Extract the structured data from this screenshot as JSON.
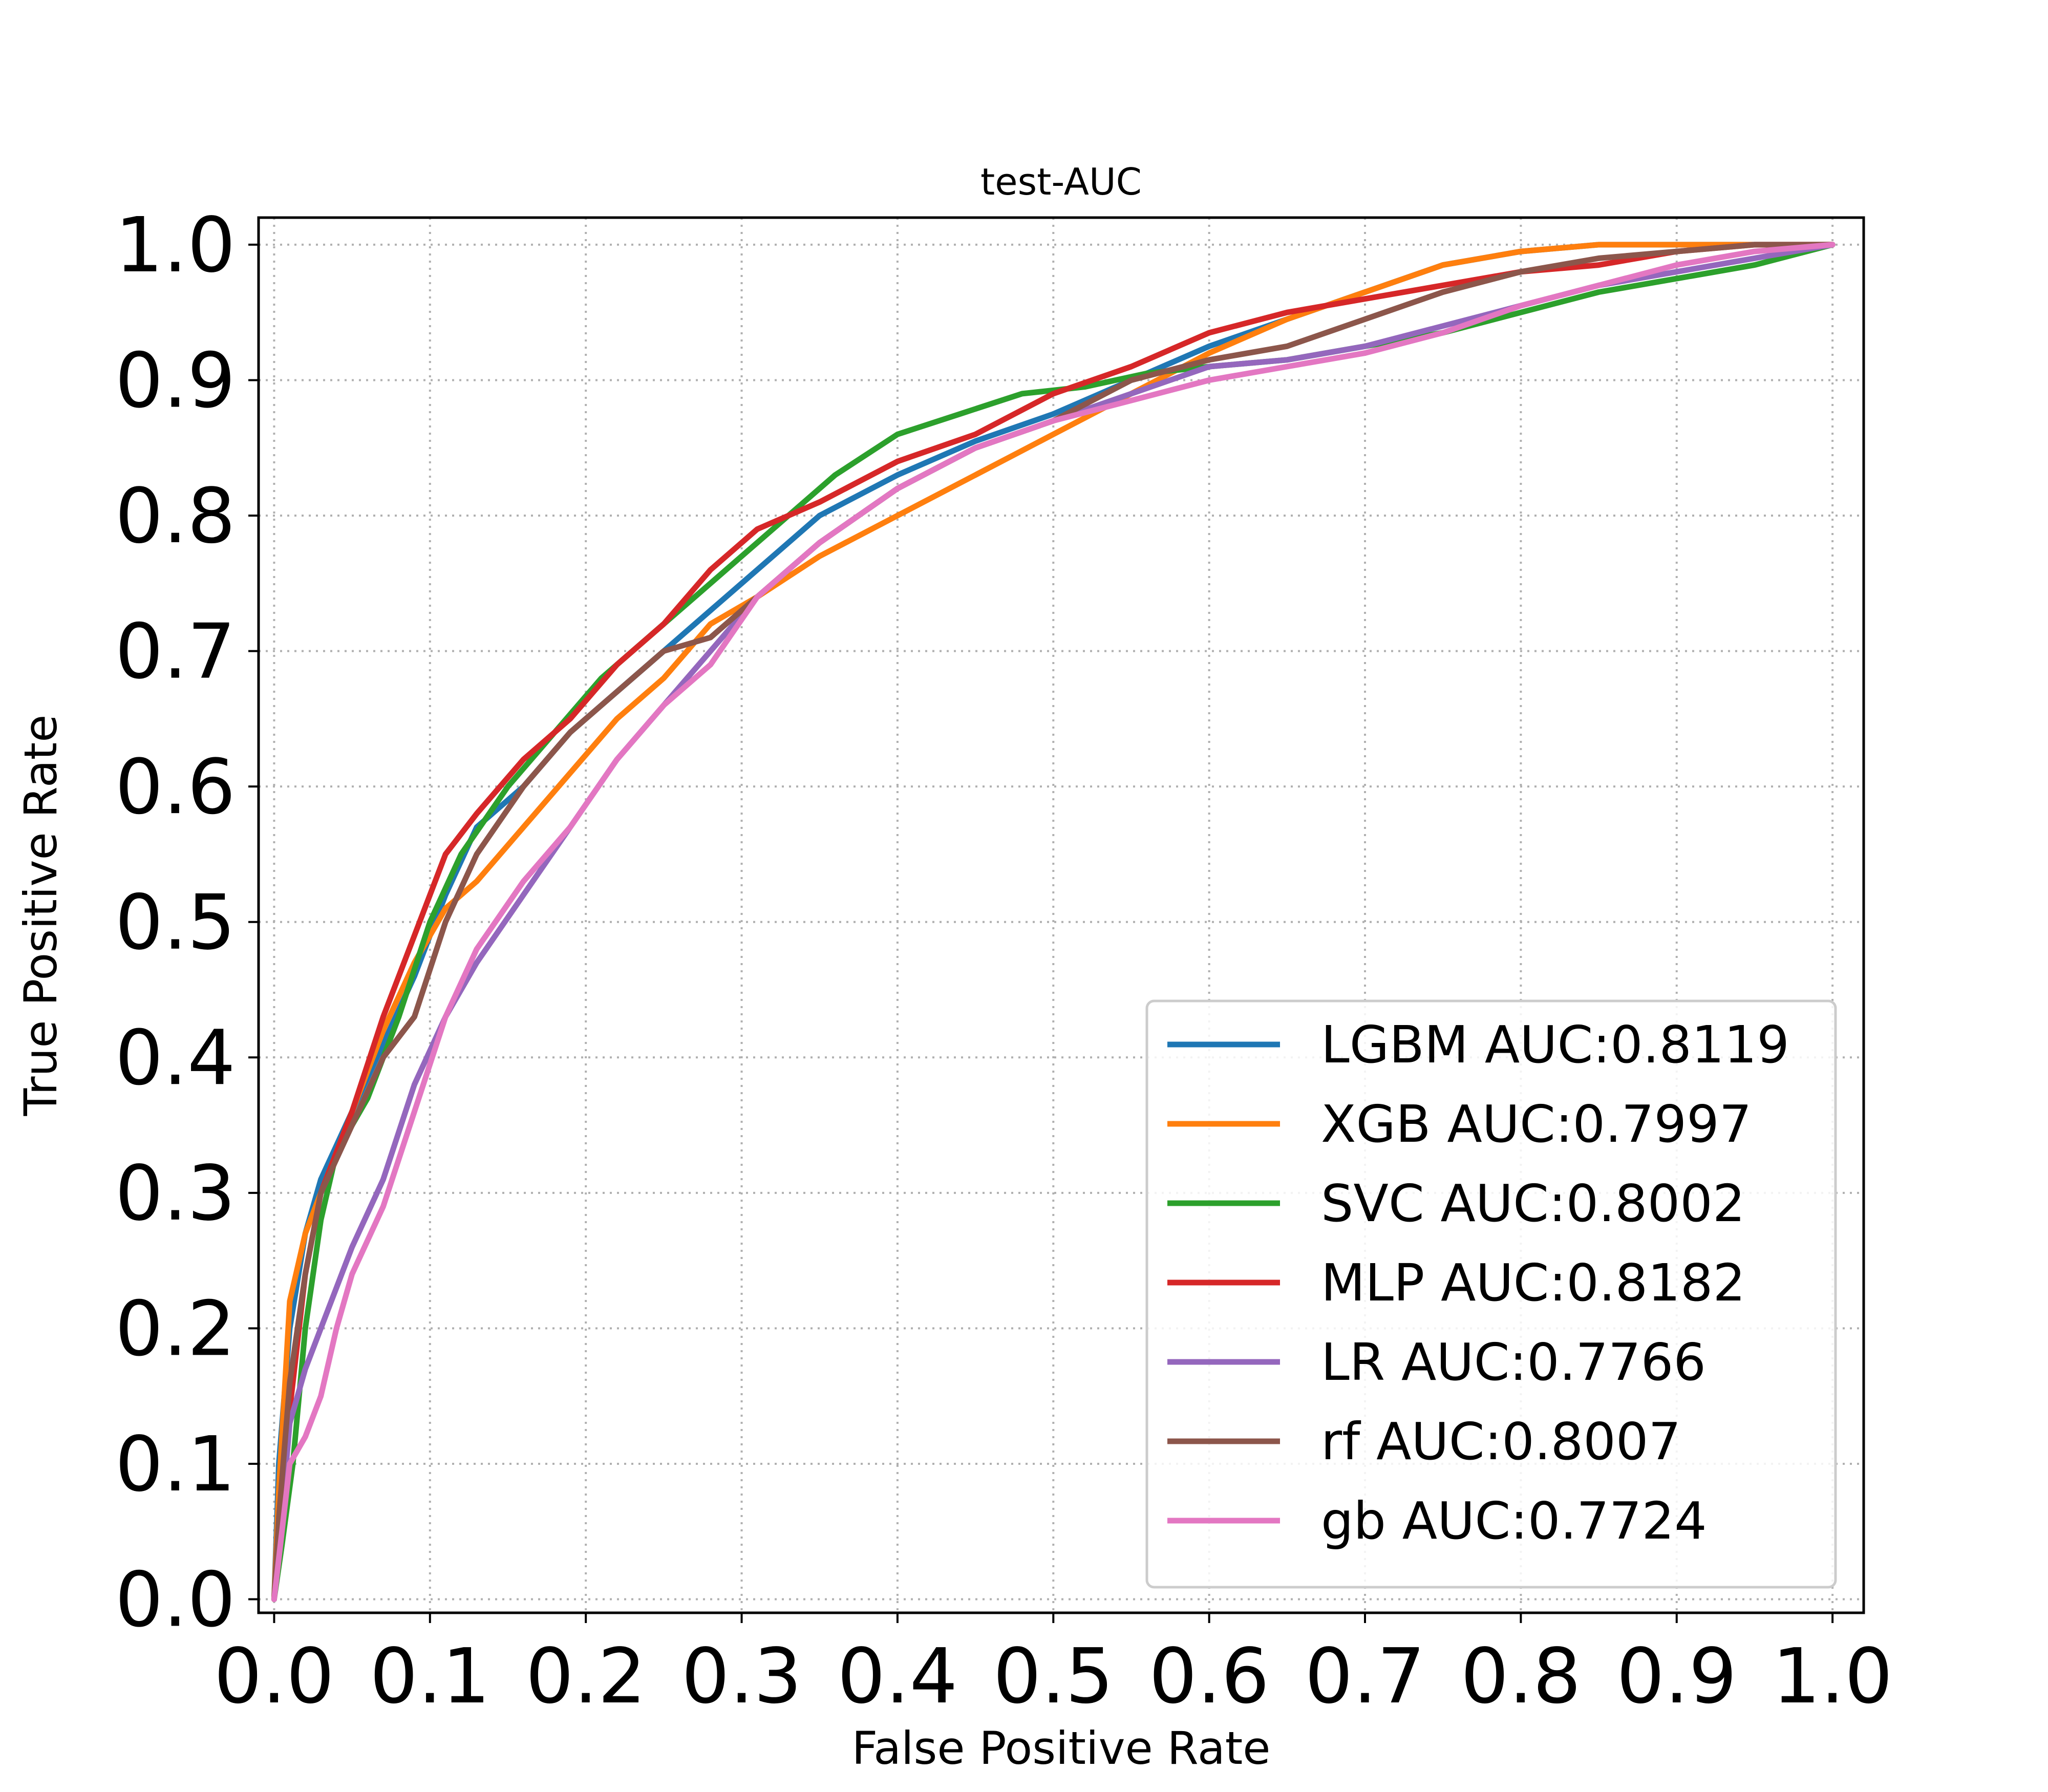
{
  "chart_data": {
    "type": "line",
    "title": "test-AUC",
    "xlabel": "False Positive Rate",
    "ylabel": "True Positive Rate",
    "xlim": [
      -0.01,
      1.02
    ],
    "ylim": [
      -0.01,
      1.02
    ],
    "xticks": [
      "0.0",
      "0.1",
      "0.2",
      "0.3",
      "0.4",
      "0.5",
      "0.6",
      "0.7",
      "0.8",
      "0.9",
      "1.0"
    ],
    "yticks": [
      "0.0",
      "0.1",
      "0.2",
      "0.3",
      "0.4",
      "0.5",
      "0.6",
      "0.7",
      "0.8",
      "0.9",
      "1.0"
    ],
    "grid": true,
    "legend_position": "lower-right",
    "series": [
      {
        "name": "LGBM AUC:0.8119",
        "color": "#1f77b4",
        "x": [
          0,
          0.003,
          0.01,
          0.02,
          0.03,
          0.05,
          0.07,
          0.09,
          0.11,
          0.13,
          0.16,
          0.19,
          0.22,
          0.25,
          0.28,
          0.31,
          0.35,
          0.4,
          0.45,
          0.5,
          0.55,
          0.6,
          0.65,
          0.7,
          0.75,
          0.8,
          0.85,
          0.9,
          0.95,
          1.0
        ],
        "y": [
          0,
          0.1,
          0.2,
          0.27,
          0.31,
          0.36,
          0.41,
          0.46,
          0.52,
          0.57,
          0.6,
          0.64,
          0.67,
          0.7,
          0.73,
          0.76,
          0.8,
          0.83,
          0.855,
          0.875,
          0.9,
          0.925,
          0.945,
          0.965,
          0.985,
          0.995,
          1.0,
          1.0,
          1.0,
          1.0
        ]
      },
      {
        "name": "XGB AUC:0.7997",
        "color": "#ff7f0e",
        "x": [
          0,
          0.003,
          0.01,
          0.02,
          0.03,
          0.05,
          0.07,
          0.09,
          0.11,
          0.13,
          0.16,
          0.19,
          0.22,
          0.25,
          0.28,
          0.31,
          0.35,
          0.4,
          0.45,
          0.5,
          0.55,
          0.6,
          0.65,
          0.7,
          0.75,
          0.8,
          0.85,
          0.9,
          0.95,
          1.0
        ],
        "y": [
          0,
          0.08,
          0.22,
          0.27,
          0.3,
          0.36,
          0.42,
          0.47,
          0.51,
          0.53,
          0.57,
          0.61,
          0.65,
          0.68,
          0.72,
          0.74,
          0.77,
          0.8,
          0.83,
          0.86,
          0.89,
          0.92,
          0.945,
          0.965,
          0.985,
          0.995,
          1.0,
          1.0,
          1.0,
          1.0
        ]
      },
      {
        "name": "SVC AUC:0.8002",
        "color": "#2ca02c",
        "x": [
          0,
          0.005,
          0.012,
          0.02,
          0.03,
          0.04,
          0.06,
          0.08,
          0.1,
          0.12,
          0.15,
          0.18,
          0.21,
          0.24,
          0.27,
          0.3,
          0.33,
          0.36,
          0.4,
          0.44,
          0.48,
          0.52,
          0.56,
          0.6,
          0.65,
          0.7,
          0.75,
          0.8,
          0.85,
          0.9,
          0.95,
          1.0
        ],
        "y": [
          0,
          0.04,
          0.1,
          0.2,
          0.28,
          0.33,
          0.37,
          0.43,
          0.5,
          0.55,
          0.6,
          0.64,
          0.68,
          0.71,
          0.74,
          0.77,
          0.8,
          0.83,
          0.86,
          0.875,
          0.89,
          0.895,
          0.905,
          0.91,
          0.915,
          0.925,
          0.935,
          0.95,
          0.965,
          0.975,
          0.985,
          1.0
        ]
      },
      {
        "name": "MLP AUC:0.8182",
        "color": "#d62728",
        "x": [
          0,
          0.003,
          0.01,
          0.02,
          0.03,
          0.05,
          0.07,
          0.09,
          0.11,
          0.13,
          0.16,
          0.19,
          0.22,
          0.25,
          0.28,
          0.31,
          0.35,
          0.4,
          0.45,
          0.5,
          0.55,
          0.6,
          0.65,
          0.7,
          0.75,
          0.8,
          0.85,
          0.9,
          0.95,
          1.0
        ],
        "y": [
          0,
          0.05,
          0.14,
          0.24,
          0.3,
          0.36,
          0.43,
          0.49,
          0.55,
          0.58,
          0.62,
          0.65,
          0.69,
          0.72,
          0.76,
          0.79,
          0.81,
          0.84,
          0.86,
          0.89,
          0.91,
          0.935,
          0.95,
          0.96,
          0.97,
          0.98,
          0.985,
          0.995,
          1.0,
          1.0
        ]
      },
      {
        "name": "LR AUC:0.7766",
        "color": "#9467bd",
        "x": [
          0,
          0.004,
          0.01,
          0.02,
          0.03,
          0.05,
          0.07,
          0.09,
          0.11,
          0.13,
          0.16,
          0.19,
          0.22,
          0.25,
          0.28,
          0.31,
          0.35,
          0.4,
          0.45,
          0.5,
          0.55,
          0.6,
          0.65,
          0.7,
          0.75,
          0.8,
          0.85,
          0.9,
          0.95,
          1.0
        ],
        "y": [
          0,
          0.05,
          0.13,
          0.17,
          0.2,
          0.26,
          0.31,
          0.38,
          0.43,
          0.47,
          0.52,
          0.57,
          0.62,
          0.66,
          0.7,
          0.74,
          0.78,
          0.82,
          0.85,
          0.87,
          0.89,
          0.91,
          0.915,
          0.925,
          0.94,
          0.955,
          0.97,
          0.98,
          0.99,
          1.0
        ]
      },
      {
        "name": "rf AUC:0.8007",
        "color": "#8c564b",
        "x": [
          0,
          0.003,
          0.01,
          0.02,
          0.03,
          0.05,
          0.07,
          0.09,
          0.11,
          0.13,
          0.16,
          0.19,
          0.22,
          0.25,
          0.28,
          0.31,
          0.35,
          0.4,
          0.45,
          0.5,
          0.55,
          0.6,
          0.65,
          0.7,
          0.75,
          0.8,
          0.85,
          0.9,
          0.95,
          1.0
        ],
        "y": [
          0,
          0.06,
          0.16,
          0.24,
          0.3,
          0.35,
          0.4,
          0.43,
          0.5,
          0.55,
          0.6,
          0.64,
          0.67,
          0.7,
          0.71,
          0.74,
          0.78,
          0.82,
          0.85,
          0.87,
          0.9,
          0.915,
          0.925,
          0.945,
          0.965,
          0.98,
          0.99,
          0.995,
          1.0,
          1.0
        ]
      },
      {
        "name": "gb AUC:0.7724",
        "color": "#e377c2",
        "x": [
          0,
          0.004,
          0.01,
          0.02,
          0.03,
          0.04,
          0.05,
          0.07,
          0.09,
          0.11,
          0.13,
          0.16,
          0.19,
          0.22,
          0.25,
          0.28,
          0.31,
          0.35,
          0.4,
          0.45,
          0.5,
          0.55,
          0.6,
          0.65,
          0.7,
          0.75,
          0.8,
          0.85,
          0.9,
          0.95,
          1.0
        ],
        "y": [
          0,
          0.04,
          0.1,
          0.12,
          0.15,
          0.2,
          0.24,
          0.29,
          0.36,
          0.43,
          0.48,
          0.53,
          0.57,
          0.62,
          0.66,
          0.69,
          0.74,
          0.78,
          0.82,
          0.85,
          0.87,
          0.885,
          0.9,
          0.91,
          0.92,
          0.935,
          0.955,
          0.97,
          0.985,
          0.995,
          1.0
        ]
      }
    ]
  }
}
